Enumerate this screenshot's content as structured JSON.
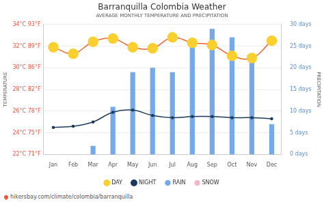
{
  "chart_data": {
    "type": "bar",
    "title": "Barranquilla Colombia Weather",
    "subtitle": "AVERAGE MONTHLY TEMPERATURE AND PRECIPITATION",
    "y_label": "TEMPERATURE",
    "y2_label": "PRECIPITATION",
    "source": "hikersbay.com/climate/colombia/barranquilla",
    "categories": [
      "Jan",
      "Feb",
      "Mar",
      "Apr",
      "May",
      "Jun",
      "Jul",
      "Aug",
      "Sep",
      "Oct",
      "Nov",
      "Dec"
    ],
    "series": [
      {
        "name": "DAY",
        "type": "line",
        "color": "#f0652f",
        "marker": "circle",
        "values": [
          31.9,
          31.3,
          32.4,
          32.7,
          31.9,
          31.8,
          32.8,
          32.3,
          32.1,
          31.1,
          30.9,
          32.5
        ]
      },
      {
        "name": "NIGHT",
        "type": "line",
        "color": "#1a3b5c",
        "marker": "circle",
        "values": [
          24.5,
          24.6,
          25.0,
          25.9,
          26.1,
          25.6,
          25.4,
          25.5,
          25.5,
          25.4,
          25.4,
          25.3
        ]
      },
      {
        "name": "RAIN",
        "type": "bar",
        "axis": "y2",
        "color": "#76a9ea",
        "values": [
          0,
          0,
          2,
          11,
          19,
          20,
          19,
          26,
          29,
          27,
          22,
          7
        ]
      },
      {
        "name": "SNOW",
        "type": "bar",
        "axis": "y2",
        "color": "#f7b6c8",
        "values": [
          0,
          0,
          0,
          0,
          0,
          0,
          0,
          0,
          0,
          0,
          0,
          0
        ]
      }
    ],
    "ylim": [
      22,
      34
    ],
    "yticks": [
      {
        "value": 22,
        "label": "22°C 71°F"
      },
      {
        "value": 24,
        "label": "24°C 75°F"
      },
      {
        "value": 26,
        "label": "26°C 78°F"
      },
      {
        "value": 28,
        "label": "28°C 82°F"
      },
      {
        "value": 30,
        "label": "30°C 86°F"
      },
      {
        "value": 32,
        "label": "32°C 89°F"
      },
      {
        "value": 34,
        "label": "34°C 93°F"
      }
    ],
    "y2lim": [
      0,
      30
    ],
    "y2ticks": [
      {
        "value": 0,
        "label": "0 days"
      },
      {
        "value": 5,
        "label": "5 days"
      },
      {
        "value": 10,
        "label": "10 days"
      },
      {
        "value": 15,
        "label": "15 days"
      },
      {
        "value": 20,
        "label": "20 days"
      },
      {
        "value": 25,
        "label": "25 days"
      },
      {
        "value": 30,
        "label": "30 days"
      }
    ],
    "grid": true,
    "legend": "bottom"
  }
}
